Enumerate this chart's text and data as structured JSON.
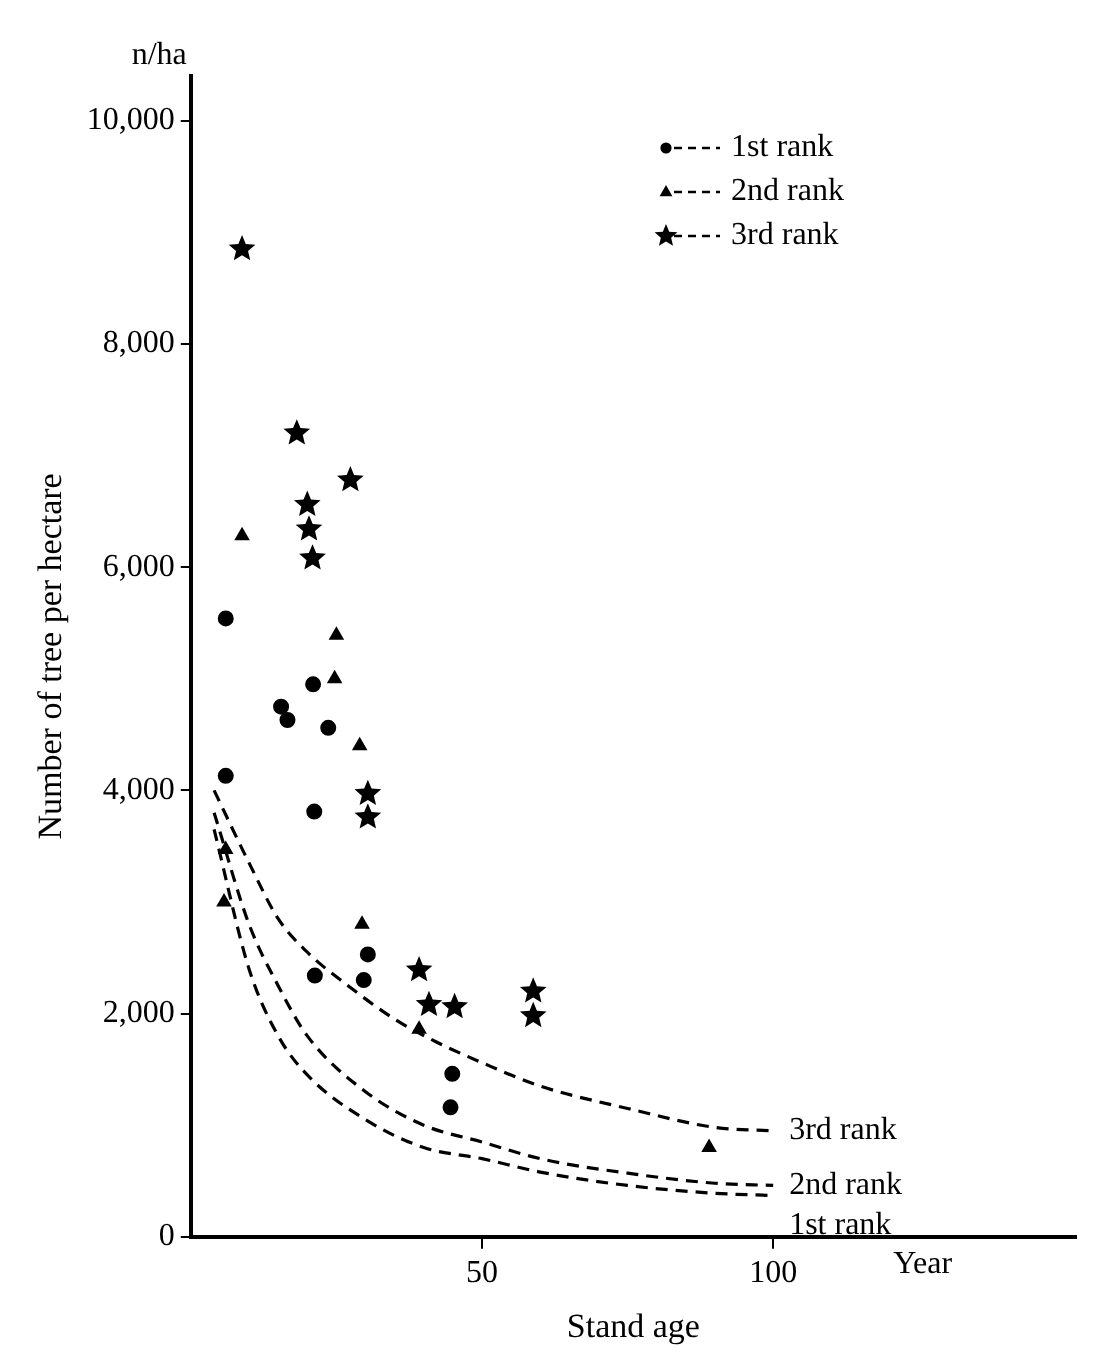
{
  "chart_data": {
    "type": "scatter",
    "xlabel": "Stand age",
    "ylabel": "Number of tree per hectare",
    "annotations": [
      "n/ha",
      "Year",
      "3rd rank",
      "2nd rank",
      "1st rank"
    ],
    "xlim": [
      0,
      152
    ],
    "xticks": [
      50,
      100
    ],
    "ylim": [
      0,
      10400
    ],
    "yticks": [
      0,
      {
        "value": 2000,
        "label": "2,000"
      },
      {
        "value": 4000,
        "label": "4,000"
      },
      {
        "value": 6000,
        "label": "6,000"
      },
      {
        "value": 8000,
        "label": "8,000"
      },
      {
        "value": 10000,
        "label": "10,000"
      }
    ],
    "grid": false,
    "legend": "top right",
    "series": [
      {
        "name": "1st rank",
        "color": "#000000",
        "marker": "circle",
        "x": [
          6,
          6,
          15.5,
          16.6,
          21,
          23.6,
          21.2,
          21.3,
          30.4,
          29.7,
          44.9,
          44.6
        ],
        "values": [
          5540,
          4130,
          4750,
          4630,
          4950,
          4560,
          3810,
          2340,
          2530,
          2300,
          1460,
          1160
        ]
      },
      {
        "name": "2nd rank",
        "color": "#000000",
        "marker": "triangle",
        "x": [
          8.8,
          25,
          24.7,
          29,
          29.4,
          39.2,
          5.7,
          6,
          89
        ],
        "values": [
          6280,
          5390,
          5000,
          4400,
          2800,
          1860,
          3000,
          3470,
          800
        ]
      },
      {
        "name": "3rd rank",
        "color": "#000000",
        "marker": "star",
        "x": [
          8.8,
          18.2,
          27.4,
          20,
          20.3,
          20.9,
          30.4,
          30.4,
          39.2,
          40.9,
          45.3,
          58.8,
          58.8
        ],
        "values": [
          8850,
          7200,
          6780,
          6560,
          6340,
          6080,
          3970,
          3760,
          2390,
          2080,
          2060,
          2200,
          1980
        ]
      },
      {
        "type": "line",
        "color": "#000000",
        "marker": "none",
        "line_style": "dashed",
        "x": [
          4,
          10,
          15,
          20,
          27,
          35,
          42,
          50,
          60,
          75,
          90,
          100
        ],
        "values": [
          4000,
          3350,
          2850,
          2550,
          2250,
          1950,
          1750,
          1560,
          1350,
          1150,
          980,
          950
        ]
      },
      {
        "type": "line",
        "color": "#000000",
        "marker": "none",
        "line_style": "dashed",
        "x": [
          4,
          10,
          15,
          20,
          30,
          40,
          50,
          60,
          75,
          90,
          100
        ],
        "values": [
          3800,
          2800,
          2250,
          1800,
          1300,
          1000,
          850,
          700,
          570,
          480,
          460
        ]
      },
      {
        "type": "line",
        "color": "#000000",
        "marker": "none",
        "line_style": "dashed",
        "x": [
          4,
          10,
          15,
          20,
          30,
          40,
          50,
          60,
          75,
          90,
          100
        ],
        "values": [
          3650,
          2400,
          1800,
          1450,
          1050,
          800,
          700,
          580,
          460,
          390,
          370
        ]
      }
    ]
  }
}
